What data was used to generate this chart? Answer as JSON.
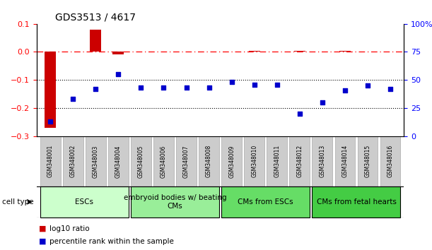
{
  "title": "GDS3513 / 4617",
  "samples": [
    "GSM348001",
    "GSM348002",
    "GSM348003",
    "GSM348004",
    "GSM348005",
    "GSM348006",
    "GSM348007",
    "GSM348008",
    "GSM348009",
    "GSM348010",
    "GSM348011",
    "GSM348012",
    "GSM348013",
    "GSM348014",
    "GSM348015",
    "GSM348016"
  ],
  "log10_ratio": [
    -0.27,
    0.002,
    0.08,
    -0.008,
    0.002,
    0.002,
    0.002,
    0.002,
    0.002,
    0.004,
    0.002,
    0.004,
    0.002,
    0.004,
    0.002,
    0.002
  ],
  "percentile_rank": [
    13,
    33,
    42,
    55,
    43,
    43,
    43,
    43,
    48,
    46,
    46,
    20,
    30,
    41,
    45,
    42
  ],
  "left_ylim": [
    -0.3,
    0.1
  ],
  "left_yticks": [
    -0.3,
    -0.2,
    -0.1,
    0.0,
    0.1
  ],
  "right_ylim": [
    0,
    100
  ],
  "right_yticks": [
    0,
    25,
    50,
    75,
    100
  ],
  "right_yticklabels": [
    "0",
    "25",
    "50",
    "75",
    "100%"
  ],
  "bar_color": "#cc0000",
  "scatter_color": "#0000cc",
  "cell_groups": [
    {
      "label": "ESCs",
      "start": 0,
      "end": 3,
      "color": "#ccffcc"
    },
    {
      "label": "embryoid bodies w/ beating\nCMs",
      "start": 4,
      "end": 7,
      "color": "#99ee99"
    },
    {
      "label": "CMs from ESCs",
      "start": 8,
      "end": 11,
      "color": "#66dd66"
    },
    {
      "label": "CMs from fetal hearts",
      "start": 12,
      "end": 15,
      "color": "#44cc44"
    }
  ],
  "cell_type_label": "cell type",
  "legend_items": [
    {
      "label": "log10 ratio",
      "color": "#cc0000"
    },
    {
      "label": "percentile rank within the sample",
      "color": "#0000cc"
    }
  ],
  "tick_label_bg": "#cccccc",
  "title_fontsize": 10,
  "axis_fontsize": 8,
  "cell_group_fontsize": 7.5
}
